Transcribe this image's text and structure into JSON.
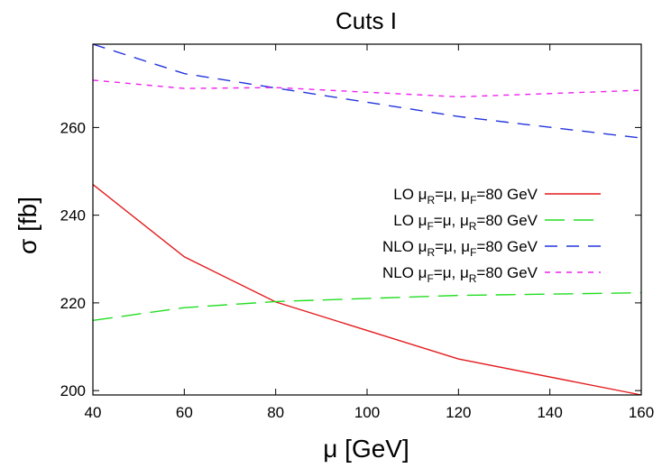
{
  "chart_data": {
    "type": "line",
    "title": "Cuts I",
    "xlabel": "μ [GeV]",
    "ylabel": "σ [fb]",
    "xlim": [
      40,
      160
    ],
    "ylim": [
      199,
      279
    ],
    "xticks": [
      40,
      60,
      80,
      100,
      120,
      140,
      160
    ],
    "yticks": [
      200,
      220,
      240,
      260
    ],
    "grid": false,
    "legend_position": "right",
    "series": [
      {
        "name": "LO  μR=μ, μF=80 GeV",
        "legend": {
          "order": "LO",
          "sub1": "R",
          "sub2": "F"
        },
        "color": "#e31a1c",
        "dash": "solid",
        "x": [
          40,
          60,
          80,
          120,
          160
        ],
        "y": [
          247.0,
          230.5,
          220.2,
          207.2,
          199.0
        ]
      },
      {
        "name": "LO  μF=μ, μR=80 GeV",
        "legend": {
          "order": "LO",
          "sub1": "F",
          "sub2": "R"
        },
        "color": "#22dd22",
        "dash": "long",
        "x": [
          40,
          60,
          80,
          120,
          160
        ],
        "y": [
          216.0,
          218.9,
          220.3,
          221.7,
          222.3
        ]
      },
      {
        "name": "NLO  μR=μ, μF=80 GeV",
        "legend": {
          "order": "NLO",
          "sub1": "R",
          "sub2": "F"
        },
        "color": "#2233dd",
        "dash": "medium",
        "x": [
          40,
          60,
          80,
          120,
          160
        ],
        "y": [
          279.0,
          272.3,
          269.0,
          262.5,
          257.6
        ]
      },
      {
        "name": "NLO  μF=μ, μR=80 GeV",
        "legend": {
          "order": "NLO",
          "sub1": "F",
          "sub2": "R"
        },
        "color": "#ee22ee",
        "dash": "short",
        "x": [
          40,
          60,
          80,
          120,
          160
        ],
        "y": [
          270.8,
          268.9,
          269.1,
          267.0,
          268.5
        ]
      }
    ]
  }
}
